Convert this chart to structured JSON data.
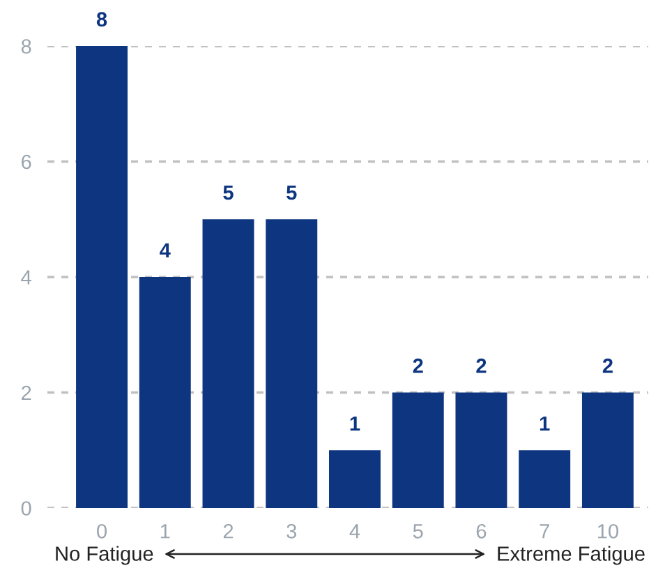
{
  "chart_data": {
    "type": "bar",
    "categories": [
      "0",
      "1",
      "2",
      "3",
      "4",
      "5",
      "6",
      "7",
      "10"
    ],
    "values": [
      8,
      4,
      5,
      5,
      1,
      2,
      2,
      1,
      2
    ],
    "color": "#0d3580",
    "ylim": [
      0,
      8
    ],
    "yticks": [
      0,
      2,
      4,
      6,
      8
    ],
    "grid": "y",
    "data_labels": true,
    "legend": false,
    "annotations": [
      "No Fatigue",
      "Extreme Fatigue"
    ]
  }
}
